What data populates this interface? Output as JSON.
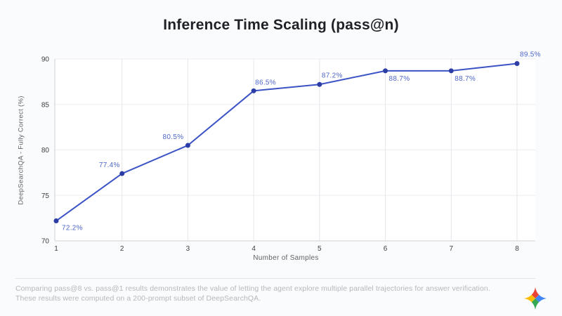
{
  "page": {
    "background": "#fafbfc"
  },
  "header": {
    "title": "Inference Time Scaling (pass@n)"
  },
  "chart_data": {
    "type": "line",
    "title": "Inference Time Scaling (pass@n)",
    "xlabel": "Number of Samples",
    "ylabel": "DeepSearchQA - Fully Correct (%)",
    "x": [
      1,
      2,
      3,
      4,
      5,
      6,
      7,
      8
    ],
    "series": [
      {
        "name": "pass@n",
        "values": [
          72.2,
          77.4,
          80.5,
          86.5,
          87.2,
          88.7,
          88.7,
          89.5
        ]
      }
    ],
    "point_labels": [
      "72.2%",
      "77.4%",
      "80.5%",
      "86.5%",
      "87.2%",
      "88.7%",
      "88.7%",
      "89.5%"
    ],
    "xticks": [
      "1",
      "2",
      "3",
      "4",
      "5",
      "6",
      "7",
      "8"
    ],
    "yticks": [
      70,
      75,
      80,
      85,
      90
    ],
    "ylim": [
      70,
      90
    ],
    "grid": true,
    "legend": false,
    "colors": {
      "line": "#3b53c5",
      "marker": "#2c3da6",
      "point_label": "#4e66c8",
      "tick_label": "#3c4043",
      "axis_title": "#5f6368",
      "grid_h": "#edeef2",
      "grid_v": "#e4e6ea",
      "axis_line": "#cdd0d5",
      "plot_bg": "#ffffff"
    }
  },
  "footer": {
    "line1": "Comparing pass@8 vs. pass@1 results demonstrates the value of letting the agent explore multiple parallel trajectories for answer verification.",
    "line2": "These results were computed on a 200-prompt subset of DeepSearchQA.",
    "logo": "gemini-sparkle-icon",
    "logo_colors": {
      "top": "#ea4335",
      "right": "#4285f4",
      "bottom": "#34a853",
      "left": "#fbbc04"
    }
  }
}
